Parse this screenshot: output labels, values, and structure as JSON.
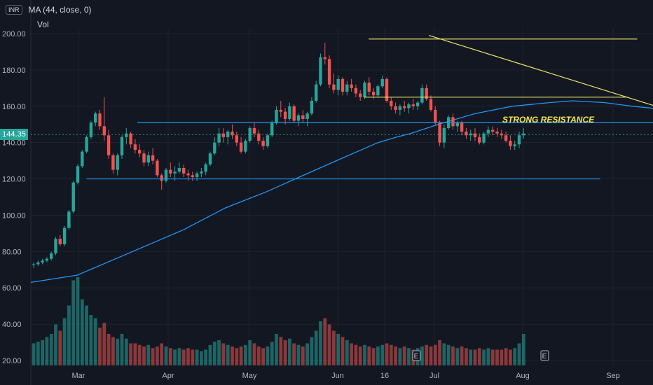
{
  "header": {
    "currency": "INR",
    "ma_label": "MA (44, close, 0)",
    "vol_label": "Vol"
  },
  "last_price_label": "144.35",
  "colors": {
    "background": "#131722",
    "up": "#26a69a",
    "down": "#ef5350",
    "ma": "#2196f3",
    "trend": "#e8e26a",
    "level": "#2196f3",
    "annotation": "#f5e84a",
    "grid": "#1e222d"
  },
  "chart_data": {
    "type": "candlestick",
    "y_axis": {
      "ticks": [
        "20.00",
        "40.00",
        "60.00",
        "80.00",
        "100.00",
        "120.00",
        "140.00",
        "160.00",
        "180.00",
        "200.00"
      ],
      "range": [
        20,
        204
      ]
    },
    "x_axis": {
      "ticks": [
        "Mar",
        "Apr",
        "May",
        "Jun",
        "16",
        "Jul",
        "Aug",
        "Sep"
      ]
    },
    "candles": [
      [
        73,
        74,
        71,
        73,
        14
      ],
      [
        73,
        75,
        72,
        74,
        15
      ],
      [
        74,
        76,
        73,
        75,
        16
      ],
      [
        75,
        77,
        74,
        76,
        18
      ],
      [
        76,
        80,
        75,
        79,
        20
      ],
      [
        79,
        88,
        78,
        87,
        26
      ],
      [
        87,
        89,
        83,
        84,
        22
      ],
      [
        84,
        94,
        83,
        93,
        30
      ],
      [
        93,
        103,
        92,
        102,
        38
      ],
      [
        102,
        119,
        101,
        118,
        54
      ],
      [
        118,
        128,
        117,
        127,
        56
      ],
      [
        127,
        136,
        126,
        135,
        42
      ],
      [
        135,
        144,
        134,
        143,
        38
      ],
      [
        143,
        152,
        142,
        151,
        32
      ],
      [
        151,
        157,
        149,
        156,
        30
      ],
      [
        156,
        158,
        147,
        149,
        24
      ],
      [
        149,
        165,
        141,
        144,
        27
      ],
      [
        144,
        147,
        131,
        133,
        20
      ],
      [
        133,
        134,
        123,
        125,
        18
      ],
      [
        125,
        134,
        122,
        133,
        17
      ],
      [
        133,
        144,
        131,
        143,
        20
      ],
      [
        143,
        148,
        139,
        145,
        17
      ],
      [
        145,
        146,
        137,
        139,
        14
      ],
      [
        139,
        142,
        134,
        136,
        14
      ],
      [
        136,
        139,
        132,
        134,
        13
      ],
      [
        134,
        136,
        127,
        129,
        12
      ],
      [
        129,
        135,
        127,
        133,
        13
      ],
      [
        133,
        137,
        128,
        130,
        11
      ],
      [
        130,
        131,
        121,
        122,
        12
      ],
      [
        122,
        123,
        114,
        119,
        14
      ],
      [
        119,
        126,
        118,
        125,
        12
      ],
      [
        125,
        129,
        121,
        123,
        11
      ],
      [
        123,
        127,
        119,
        124,
        10
      ],
      [
        124,
        129,
        123,
        126,
        11
      ],
      [
        126,
        128,
        121,
        123,
        10
      ],
      [
        123,
        125,
        119,
        122,
        11
      ],
      [
        122,
        124,
        119,
        121,
        10
      ],
      [
        121,
        124,
        119,
        123,
        10
      ],
      [
        123,
        126,
        121,
        124,
        9
      ],
      [
        124,
        129,
        122,
        128,
        10
      ],
      [
        128,
        135,
        127,
        134,
        13
      ],
      [
        134,
        143,
        133,
        140,
        15
      ],
      [
        140,
        148,
        138,
        145,
        16
      ],
      [
        145,
        148,
        140,
        143,
        14
      ],
      [
        143,
        147,
        139,
        146,
        13
      ],
      [
        146,
        150,
        142,
        144,
        12
      ],
      [
        144,
        146,
        138,
        140,
        11
      ],
      [
        140,
        143,
        134,
        135,
        12
      ],
      [
        135,
        142,
        134,
        141,
        13
      ],
      [
        141,
        149,
        140,
        148,
        16
      ],
      [
        148,
        151,
        143,
        145,
        14
      ],
      [
        145,
        147,
        139,
        141,
        12
      ],
      [
        141,
        143,
        136,
        138,
        11
      ],
      [
        138,
        145,
        137,
        144,
        12
      ],
      [
        144,
        152,
        143,
        151,
        15
      ],
      [
        151,
        160,
        150,
        158,
        20
      ],
      [
        158,
        163,
        154,
        157,
        18
      ],
      [
        157,
        159,
        150,
        153,
        16
      ],
      [
        153,
        162,
        152,
        160,
        17
      ],
      [
        160,
        161,
        151,
        152,
        14
      ],
      [
        152,
        156,
        149,
        155,
        13
      ],
      [
        155,
        158,
        151,
        153,
        12
      ],
      [
        153,
        157,
        149,
        156,
        14
      ],
      [
        156,
        165,
        155,
        163,
        18
      ],
      [
        163,
        174,
        162,
        172,
        22
      ],
      [
        172,
        189,
        171,
        187,
        28
      ],
      [
        187,
        195,
        183,
        186,
        30
      ],
      [
        186,
        188,
        170,
        172,
        26
      ],
      [
        172,
        178,
        167,
        169,
        22
      ],
      [
        169,
        177,
        166,
        175,
        20
      ],
      [
        175,
        176,
        166,
        168,
        18
      ],
      [
        168,
        174,
        166,
        172,
        16
      ],
      [
        172,
        175,
        168,
        170,
        14
      ],
      [
        170,
        172,
        165,
        167,
        13
      ],
      [
        167,
        169,
        163,
        165,
        12
      ],
      [
        165,
        174,
        164,
        173,
        13
      ],
      [
        173,
        176,
        166,
        168,
        12
      ],
      [
        168,
        170,
        164,
        166,
        11
      ],
      [
        166,
        172,
        165,
        171,
        12
      ],
      [
        171,
        177,
        170,
        175,
        13
      ],
      [
        175,
        176,
        162,
        163,
        14
      ],
      [
        163,
        165,
        158,
        160,
        13
      ],
      [
        160,
        162,
        156,
        158,
        12
      ],
      [
        158,
        161,
        155,
        160,
        11
      ],
      [
        160,
        163,
        157,
        159,
        12
      ],
      [
        159,
        162,
        156,
        161,
        11
      ],
      [
        161,
        164,
        158,
        160,
        10
      ],
      [
        160,
        163,
        158,
        162,
        11
      ],
      [
        162,
        172,
        161,
        170,
        12
      ],
      [
        170,
        172,
        163,
        164,
        13
      ],
      [
        164,
        166,
        157,
        158,
        12
      ],
      [
        158,
        160,
        150,
        151,
        13
      ],
      [
        151,
        152,
        138,
        140,
        16
      ],
      [
        140,
        150,
        137,
        148,
        14
      ],
      [
        148,
        155,
        147,
        154,
        13
      ],
      [
        154,
        156,
        147,
        149,
        12
      ],
      [
        149,
        152,
        146,
        151,
        11
      ],
      [
        151,
        152,
        144,
        146,
        12
      ],
      [
        146,
        148,
        142,
        144,
        11
      ],
      [
        144,
        147,
        141,
        145,
        10
      ],
      [
        145,
        148,
        141,
        143,
        10
      ],
      [
        143,
        145,
        139,
        140,
        11
      ],
      [
        140,
        146,
        139,
        145,
        10
      ],
      [
        145,
        149,
        143,
        147,
        11
      ],
      [
        147,
        149,
        144,
        146,
        10
      ],
      [
        146,
        148,
        143,
        145,
        10
      ],
      [
        145,
        147,
        142,
        144,
        10
      ],
      [
        144,
        146,
        140,
        141,
        11
      ],
      [
        141,
        144,
        136,
        138,
        10
      ],
      [
        138,
        141,
        136,
        139,
        11
      ],
      [
        139,
        146,
        137,
        144,
        14
      ],
      [
        144,
        148,
        142,
        145,
        20
      ]
    ],
    "ma_44": [
      [
        0,
        63
      ],
      [
        0.1,
        67
      ],
      [
        0.22,
        80
      ],
      [
        0.33,
        92
      ],
      [
        0.42,
        104
      ],
      [
        0.51,
        113
      ],
      [
        0.58,
        121
      ],
      [
        0.66,
        130
      ],
      [
        0.75,
        140
      ],
      [
        0.79,
        143
      ],
      [
        0.82,
        145
      ],
      [
        0.88,
        150
      ],
      [
        0.96,
        156
      ],
      [
        1.04,
        160
      ],
      [
        1.12,
        162
      ],
      [
        1.17,
        163
      ],
      [
        1.24,
        162
      ],
      [
        1.3,
        160
      ],
      [
        1.38,
        158
      ],
      [
        1.45,
        157
      ],
      [
        1.52,
        156
      ],
      [
        1.56,
        154
      ]
    ],
    "annotations": [
      {
        "type": "hline",
        "y": 197,
        "x0": 0.73,
        "x1": 1.31,
        "color": "trend"
      },
      {
        "type": "hline",
        "y": 165,
        "x0": 0.72,
        "x1": 1.29,
        "color": "trend"
      },
      {
        "type": "hline",
        "y": 151,
        "x0": 0.23,
        "x1": 1.59,
        "color": "level"
      },
      {
        "type": "hline",
        "y": 120,
        "x0": 0.12,
        "x1": 1.23,
        "color": "level"
      },
      {
        "type": "line",
        "x0": 0.86,
        "y0": 199,
        "x1": 1.69,
        "y1": 133,
        "color": "trend"
      }
    ],
    "label": "STRONG RESISTANCE",
    "earnings_markers": [
      "E",
      "E"
    ]
  }
}
